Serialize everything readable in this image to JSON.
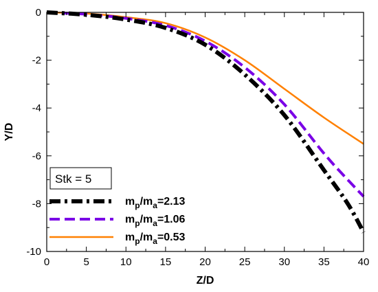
{
  "chart_data": {
    "type": "line",
    "title": "",
    "xlabel": "Z/D",
    "ylabel": "Y/D",
    "xlim": [
      0,
      40
    ],
    "ylim": [
      -10,
      0
    ],
    "x_ticks": [
      "0",
      "5",
      "10",
      "15",
      "20",
      "25",
      "30",
      "35",
      "40"
    ],
    "y_ticks": [
      "0",
      "-2",
      "-4",
      "-6",
      "-8",
      "-10"
    ],
    "grid": false,
    "legend_position": "bottom-left",
    "annotation": "Stk = 5",
    "series": [
      {
        "name": "mp/ma=2.13",
        "legend": {
          "base": "m",
          "sub1": "p",
          "mid": "/m",
          "sub2": "a",
          "value": "=2.13"
        },
        "color": "#000000",
        "style": "dash-dot",
        "x": [
          0,
          5,
          10,
          15,
          20,
          25,
          30,
          35,
          38,
          40
        ],
        "y": [
          0,
          -0.1,
          -0.3,
          -0.65,
          -1.35,
          -2.6,
          -4.3,
          -6.6,
          -8.0,
          -9.2
        ]
      },
      {
        "name": "mp/ma=1.06",
        "legend": {
          "base": "m",
          "sub1": "p",
          "mid": "/m",
          "sub2": "a",
          "value": "=1.06"
        },
        "color": "#7a00e6",
        "style": "dashed",
        "x": [
          0,
          5,
          10,
          15,
          20,
          25,
          30,
          35,
          38,
          40
        ],
        "y": [
          0,
          -0.08,
          -0.25,
          -0.55,
          -1.2,
          -2.3,
          -3.85,
          -5.9,
          -7.0,
          -7.7
        ]
      },
      {
        "name": "mp/ma=0.53",
        "legend": {
          "base": "m",
          "sub1": "p",
          "mid": "/m",
          "sub2": "a",
          "value": "=0.53"
        },
        "color": "#ff8000",
        "style": "solid",
        "x": [
          0,
          5,
          10,
          15,
          20,
          25,
          30,
          35,
          40
        ],
        "y": [
          0,
          -0.05,
          -0.2,
          -0.45,
          -1.05,
          -2.0,
          -3.2,
          -4.4,
          -5.5
        ]
      }
    ]
  }
}
